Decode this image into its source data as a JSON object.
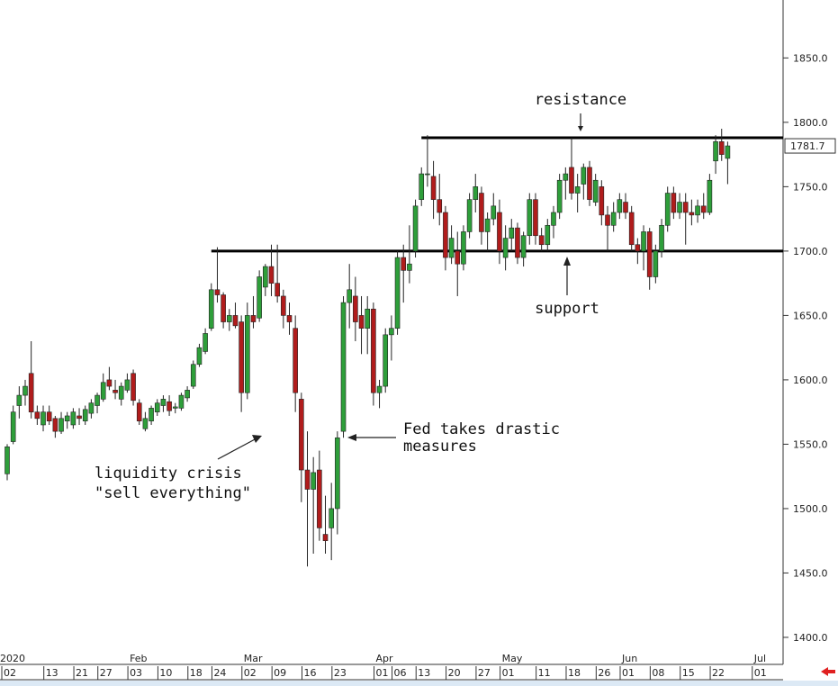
{
  "chart_data": {
    "type": "candlestick",
    "x": [
      "2020-01-02",
      "2020-01-03",
      "2020-01-06",
      "2020-01-07",
      "2020-01-08",
      "2020-01-09",
      "2020-01-10",
      "2020-01-13",
      "2020-01-14",
      "2020-01-15",
      "2020-01-16",
      "2020-01-17",
      "2020-01-21",
      "2020-01-22",
      "2020-01-23",
      "2020-01-24",
      "2020-01-27",
      "2020-01-28",
      "2020-01-29",
      "2020-01-30",
      "2020-01-31",
      "2020-02-03",
      "2020-02-04",
      "2020-02-05",
      "2020-02-06",
      "2020-02-07",
      "2020-02-10",
      "2020-02-11",
      "2020-02-12",
      "2020-02-13",
      "2020-02-14",
      "2020-02-18",
      "2020-02-19",
      "2020-02-20",
      "2020-02-21",
      "2020-02-24",
      "2020-02-25",
      "2020-02-26",
      "2020-02-27",
      "2020-02-28",
      "2020-03-02",
      "2020-03-03",
      "2020-03-04",
      "2020-03-05",
      "2020-03-06",
      "2020-03-09",
      "2020-03-10",
      "2020-03-11",
      "2020-03-12",
      "2020-03-13",
      "2020-03-16",
      "2020-03-17",
      "2020-03-18",
      "2020-03-19",
      "2020-03-20",
      "2020-03-23",
      "2020-03-24",
      "2020-03-25",
      "2020-03-26",
      "2020-03-27",
      "2020-03-30",
      "2020-03-31",
      "2020-04-01",
      "2020-04-02",
      "2020-04-03",
      "2020-04-06",
      "2020-04-07",
      "2020-04-08",
      "2020-04-09",
      "2020-04-13",
      "2020-04-14",
      "2020-04-15",
      "2020-04-16",
      "2020-04-17",
      "2020-04-20",
      "2020-04-21",
      "2020-04-22",
      "2020-04-23",
      "2020-04-24",
      "2020-04-27",
      "2020-04-28",
      "2020-04-29",
      "2020-04-30",
      "2020-05-01",
      "2020-05-04",
      "2020-05-05",
      "2020-05-06",
      "2020-05-07",
      "2020-05-08",
      "2020-05-11",
      "2020-05-12",
      "2020-05-13",
      "2020-05-14",
      "2020-05-15",
      "2020-05-18",
      "2020-05-19",
      "2020-05-20",
      "2020-05-21",
      "2020-05-22",
      "2020-05-26",
      "2020-05-27",
      "2020-05-28",
      "2020-05-29",
      "2020-06-01",
      "2020-06-02",
      "2020-06-03",
      "2020-06-04",
      "2020-06-05",
      "2020-06-08",
      "2020-06-09",
      "2020-06-10",
      "2020-06-11",
      "2020-06-12",
      "2020-06-15",
      "2020-06-16",
      "2020-06-17",
      "2020-06-18",
      "2020-06-19",
      "2020-06-22",
      "2020-06-23",
      "2020-06-24"
    ],
    "open": [
      1527,
      1552,
      1580,
      1588,
      1605,
      1575,
      1565,
      1575,
      1570,
      1560,
      1568,
      1565,
      1572,
      1568,
      1574,
      1580,
      1585,
      1600,
      1592,
      1585,
      1592,
      1605,
      1582,
      1562,
      1568,
      1575,
      1580,
      1583,
      1578,
      1578,
      1586,
      1595,
      1612,
      1622,
      1640,
      1670,
      1666,
      1645,
      1650,
      1645,
      1590,
      1650,
      1648,
      1672,
      1688,
      1675,
      1665,
      1650,
      1640,
      1585,
      1530,
      1515,
      1530,
      1480,
      1485,
      1500,
      1560,
      1660,
      1665,
      1650,
      1640,
      1655,
      1590,
      1595,
      1635,
      1640,
      1695,
      1685,
      1700,
      1740,
      1760,
      1758,
      1740,
      1730,
      1695,
      1700,
      1690,
      1715,
      1740,
      1745,
      1715,
      1725,
      1730,
      1695,
      1710,
      1718,
      1695,
      1712,
      1740,
      1712,
      1705,
      1720,
      1730,
      1755,
      1765,
      1745,
      1752,
      1765,
      1738,
      1750,
      1728,
      1720,
      1730,
      1738,
      1730,
      1705,
      1700,
      1715,
      1680,
      1700,
      1720,
      1745,
      1730,
      1738,
      1730,
      1728,
      1735,
      1730,
      1770,
      1785,
      1772
    ],
    "high": [
      1550,
      1580,
      1595,
      1600,
      1630,
      1580,
      1580,
      1580,
      1572,
      1575,
      1575,
      1578,
      1578,
      1580,
      1585,
      1590,
      1605,
      1610,
      1600,
      1598,
      1605,
      1608,
      1585,
      1575,
      1580,
      1585,
      1588,
      1588,
      1582,
      1590,
      1595,
      1615,
      1628,
      1640,
      1675,
      1703,
      1668,
      1655,
      1660,
      1650,
      1660,
      1665,
      1685,
      1690,
      1705,
      1705,
      1670,
      1660,
      1650,
      1590,
      1560,
      1540,
      1545,
      1510,
      1520,
      1560,
      1665,
      1690,
      1680,
      1665,
      1665,
      1660,
      1600,
      1640,
      1650,
      1700,
      1705,
      1720,
      1740,
      1765,
      1790,
      1770,
      1760,
      1735,
      1720,
      1715,
      1720,
      1745,
      1760,
      1750,
      1730,
      1745,
      1740,
      1720,
      1725,
      1722,
      1715,
      1745,
      1745,
      1718,
      1725,
      1735,
      1760,
      1765,
      1788,
      1760,
      1768,
      1770,
      1760,
      1755,
      1735,
      1738,
      1745,
      1745,
      1735,
      1710,
      1720,
      1718,
      1705,
      1725,
      1750,
      1750,
      1745,
      1745,
      1740,
      1740,
      1745,
      1760,
      1790,
      1795,
      1785
    ],
    "low": [
      1522,
      1550,
      1570,
      1580,
      1570,
      1565,
      1560,
      1565,
      1555,
      1558,
      1562,
      1562,
      1565,
      1565,
      1570,
      1574,
      1583,
      1592,
      1585,
      1580,
      1590,
      1580,
      1565,
      1560,
      1565,
      1572,
      1575,
      1572,
      1574,
      1576,
      1583,
      1593,
      1610,
      1620,
      1638,
      1660,
      1640,
      1638,
      1640,
      1575,
      1585,
      1640,
      1645,
      1665,
      1665,
      1660,
      1640,
      1635,
      1575,
      1505,
      1455,
      1465,
      1475,
      1465,
      1460,
      1480,
      1555,
      1640,
      1630,
      1620,
      1620,
      1580,
      1578,
      1590,
      1615,
      1635,
      1660,
      1675,
      1695,
      1735,
      1750,
      1725,
      1720,
      1685,
      1690,
      1665,
      1685,
      1710,
      1730,
      1705,
      1700,
      1720,
      1690,
      1685,
      1700,
      1690,
      1688,
      1705,
      1705,
      1700,
      1700,
      1710,
      1725,
      1740,
      1740,
      1730,
      1740,
      1735,
      1735,
      1720,
      1700,
      1715,
      1725,
      1725,
      1700,
      1690,
      1685,
      1670,
      1675,
      1695,
      1715,
      1725,
      1725,
      1705,
      1720,
      1722,
      1725,
      1728,
      1760,
      1770,
      1752
    ],
    "close": [
      1548,
      1575,
      1588,
      1595,
      1575,
      1570,
      1575,
      1568,
      1560,
      1570,
      1572,
      1575,
      1570,
      1577,
      1582,
      1588,
      1598,
      1595,
      1590,
      1595,
      1600,
      1584,
      1568,
      1570,
      1578,
      1582,
      1585,
      1576,
      1579,
      1588,
      1592,
      1612,
      1625,
      1636,
      1670,
      1666,
      1645,
      1650,
      1642,
      1590,
      1650,
      1645,
      1680,
      1688,
      1675,
      1665,
      1650,
      1645,
      1590,
      1530,
      1515,
      1528,
      1485,
      1475,
      1500,
      1555,
      1660,
      1670,
      1645,
      1640,
      1655,
      1590,
      1595,
      1635,
      1640,
      1695,
      1685,
      1690,
      1735,
      1760,
      1760,
      1740,
      1730,
      1695,
      1710,
      1690,
      1715,
      1740,
      1750,
      1715,
      1725,
      1735,
      1700,
      1710,
      1718,
      1695,
      1712,
      1740,
      1712,
      1705,
      1720,
      1730,
      1755,
      1760,
      1745,
      1750,
      1765,
      1740,
      1755,
      1728,
      1720,
      1730,
      1740,
      1730,
      1705,
      1700,
      1715,
      1680,
      1700,
      1720,
      1745,
      1730,
      1738,
      1730,
      1728,
      1735,
      1730,
      1755,
      1785,
      1775,
      1781.7
    ],
    "up_color": "#2e9e3a",
    "down_color": "#b01c1c",
    "ylim": [
      1379,
      1895
    ],
    "yticks": [
      {
        "value": 1400,
        "label": "1400.0"
      },
      {
        "value": 1450,
        "label": "1450.0"
      },
      {
        "value": 1500,
        "label": "1500.0"
      },
      {
        "value": 1550,
        "label": "1550.0"
      },
      {
        "value": 1600,
        "label": "1600.0"
      },
      {
        "value": 1650,
        "label": "1650.0"
      },
      {
        "value": 1700,
        "label": "1700.0"
      },
      {
        "value": 1750,
        "label": "1750.0"
      },
      {
        "value": 1800,
        "label": "1800.0"
      },
      {
        "value": 1850,
        "label": "1850.0"
      }
    ],
    "xticks": [
      {
        "value": "2020-01-02",
        "label": "02"
      },
      {
        "value": "2020-01-13",
        "label": "13"
      },
      {
        "value": "2020-01-21",
        "label": "21"
      },
      {
        "value": "2020-01-27",
        "label": "27"
      },
      {
        "value": "2020-02-03",
        "label": "03"
      },
      {
        "value": "2020-02-10",
        "label": "10"
      },
      {
        "value": "2020-02-18",
        "label": "18"
      },
      {
        "value": "2020-02-24",
        "label": "24"
      },
      {
        "value": "2020-03-02",
        "label": "02"
      },
      {
        "value": "2020-03-09",
        "label": "09"
      },
      {
        "value": "2020-03-16",
        "label": "16"
      },
      {
        "value": "2020-03-23",
        "label": "23"
      },
      {
        "value": "2020-04-01",
        "label": "01"
      },
      {
        "value": "2020-04-06",
        "label": "06"
      },
      {
        "value": "2020-04-13",
        "label": "13"
      },
      {
        "value": "2020-04-20",
        "label": "20"
      },
      {
        "value": "2020-04-27",
        "label": "27"
      },
      {
        "value": "2020-05-01",
        "label": "01"
      },
      {
        "value": "2020-05-11",
        "label": "11"
      },
      {
        "value": "2020-05-18",
        "label": "18"
      },
      {
        "value": "2020-05-26",
        "label": "26"
      },
      {
        "value": "2020-06-01",
        "label": "01"
      },
      {
        "value": "2020-06-08",
        "label": "08"
      },
      {
        "value": "2020-06-15",
        "label": "15"
      },
      {
        "value": "2020-06-22",
        "label": "22"
      },
      {
        "value": "2020-07-01",
        "label": "01"
      }
    ],
    "month_labels": [
      {
        "value": "2020-01-02",
        "label": "2020"
      },
      {
        "value": "2020-02-03",
        "label": "Feb"
      },
      {
        "value": "2020-03-02",
        "label": "Mar"
      },
      {
        "value": "2020-04-01",
        "label": "Apr"
      },
      {
        "value": "2020-05-01",
        "label": "May"
      },
      {
        "value": "2020-06-01",
        "label": "Jun"
      },
      {
        "value": "2020-07-01",
        "label": "Jul"
      }
    ],
    "hlines": [
      {
        "value": 1788,
        "start": "2020-04-13"
      },
      {
        "value": 1700,
        "start": "2020-02-21"
      }
    ],
    "annotations": [
      "resistance",
      "support",
      [
        "Fed takes drastic",
        "measures"
      ],
      [
        "liquidity crisis",
        "\"sell everything\""
      ]
    ]
  }
}
